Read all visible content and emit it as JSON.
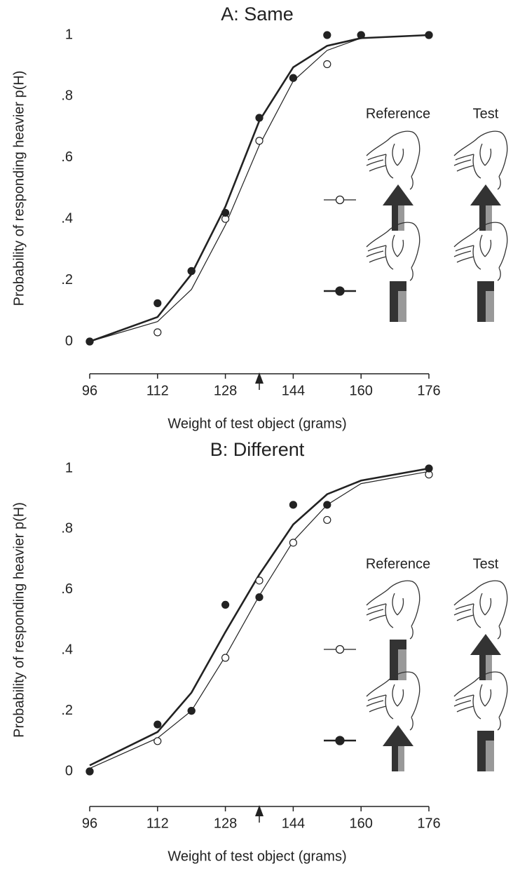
{
  "chart_data": [
    {
      "type": "line",
      "title": "A: Same",
      "x_label": "Weight of test object (grams)",
      "y_label": "Probability of responding heavier p(H)",
      "legend_headers": [
        "Reference",
        "Test"
      ],
      "x": [
        96,
        112,
        120,
        128,
        136,
        144,
        152,
        160,
        176
      ],
      "series": [
        {
          "style": "line",
          "width": 2.6,
          "color": "#222",
          "values": [
            0,
            0.08,
            0.22,
            0.44,
            0.72,
            0.895,
            0.965,
            0.99,
            1.0
          ]
        },
        {
          "style": "line",
          "width": 1.2,
          "color": "#222",
          "values": [
            0,
            0.065,
            0.17,
            0.38,
            0.64,
            0.85,
            0.95,
            0.99,
            1.0
          ]
        },
        {
          "style": "open",
          "color": "#222",
          "values": [
            0,
            0.03,
            0.23,
            0.4,
            0.655,
            0.86,
            0.905,
            1.0,
            1.0
          ]
        },
        {
          "style": "filled",
          "color": "#222",
          "values": [
            0,
            0.125,
            0.23,
            0.42,
            0.73,
            0.86,
            1.0,
            1.0,
            1.0
          ]
        }
      ],
      "reference_weight": 136,
      "xlim": [
        96,
        176
      ],
      "xticks": [
        96,
        112,
        128,
        144,
        160,
        176
      ],
      "ylim": [
        0,
        1
      ],
      "yticks": [
        0,
        {
          "value": 0.2,
          "label": ".2"
        },
        {
          "value": 0.4,
          "label": ".4"
        },
        {
          "value": 0.6,
          "label": ".6"
        },
        {
          "value": 0.8,
          "label": ".8"
        },
        1
      ]
    },
    {
      "type": "line",
      "title": "B: Different",
      "x_label": "Weight of test object (grams)",
      "y_label": "Probability of responding heavier p(H)",
      "legend_headers": [
        "Reference",
        "Test"
      ],
      "x": [
        96,
        112,
        120,
        128,
        136,
        144,
        152,
        160,
        176
      ],
      "series": [
        {
          "style": "line",
          "width": 2.6,
          "color": "#222",
          "values": [
            0.02,
            0.13,
            0.26,
            0.46,
            0.65,
            0.815,
            0.915,
            0.96,
            1.0
          ]
        },
        {
          "style": "line",
          "width": 1.2,
          "color": "#222",
          "values": [
            0.01,
            0.11,
            0.2,
            0.38,
            0.58,
            0.76,
            0.88,
            0.95,
            0.99
          ]
        },
        {
          "style": "open",
          "color": "#222",
          "values": [
            0,
            0.1,
            0.2,
            0.375,
            0.63,
            0.755,
            0.83,
            null,
            0.98
          ]
        },
        {
          "style": "filled",
          "color": "#222",
          "values": [
            0,
            0.155,
            0.2,
            0.55,
            0.575,
            0.88,
            0.88,
            null,
            1.0
          ]
        }
      ],
      "reference_weight": 136,
      "xlim": [
        96,
        176
      ],
      "xticks": [
        96,
        112,
        128,
        144,
        160,
        176
      ],
      "ylim": [
        0,
        1
      ],
      "yticks": [
        0,
        {
          "value": 0.2,
          "label": ".2"
        },
        {
          "value": 0.4,
          "label": ".4"
        },
        {
          "value": 0.6,
          "label": ".6"
        },
        {
          "value": 0.8,
          "label": ".8"
        },
        1
      ]
    }
  ]
}
